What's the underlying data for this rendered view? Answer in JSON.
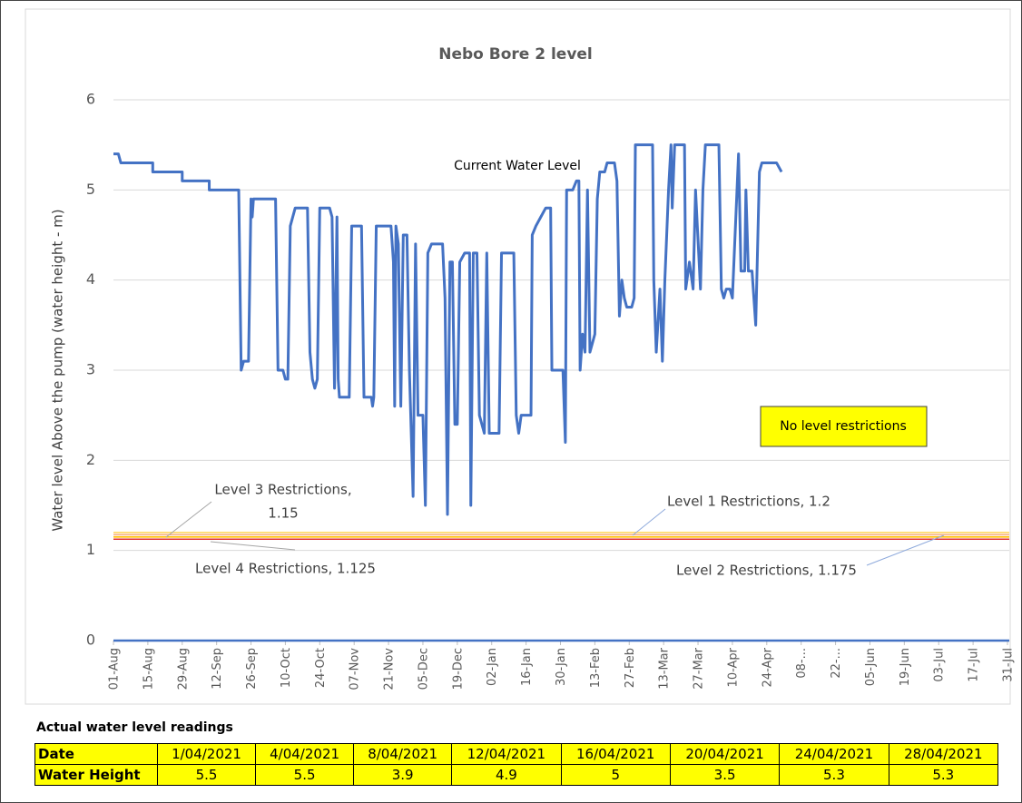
{
  "chart_data": {
    "type": "line",
    "title": "Nebo Bore 2 level",
    "y_label": "Water level Above the pump (water height - m)",
    "xlim": [
      0,
      364
    ],
    "xticks": [
      {
        "value": 0,
        "label": "01-Aug"
      },
      {
        "value": 14,
        "label": "15-Aug"
      },
      {
        "value": 28,
        "label": "29-Aug"
      },
      {
        "value": 42,
        "label": "12-Sep"
      },
      {
        "value": 56,
        "label": "26-Sep"
      },
      {
        "value": 70,
        "label": "10-Oct"
      },
      {
        "value": 84,
        "label": "24-Oct"
      },
      {
        "value": 98,
        "label": "07-Nov"
      },
      {
        "value": 112,
        "label": "21-Nov"
      },
      {
        "value": 126,
        "label": "05-Dec"
      },
      {
        "value": 140,
        "label": "19-Dec"
      },
      {
        "value": 154,
        "label": "02-Jan"
      },
      {
        "value": 168,
        "label": "16-Jan"
      },
      {
        "value": 182,
        "label": "30-Jan"
      },
      {
        "value": 196,
        "label": "13-Feb"
      },
      {
        "value": 210,
        "label": "27-Feb"
      },
      {
        "value": 224,
        "label": "13-Mar"
      },
      {
        "value": 238,
        "label": "27-Mar"
      },
      {
        "value": 252,
        "label": "10-Apr"
      },
      {
        "value": 266,
        "label": "24-Apr"
      },
      {
        "value": 280,
        "label": "08-..."
      },
      {
        "value": 294,
        "label": "22-..."
      },
      {
        "value": 308,
        "label": "05-Jun"
      },
      {
        "value": 322,
        "label": "19-Jun"
      },
      {
        "value": 336,
        "label": "03-Jul"
      },
      {
        "value": 350,
        "label": "17-Jul"
      },
      {
        "value": 364,
        "label": "31-Jul"
      }
    ],
    "ylim": [
      0,
      6
    ],
    "yticks": [
      0,
      1,
      2,
      3,
      4,
      5,
      6
    ],
    "grid": true,
    "series": [
      {
        "name": "Current Water Level",
        "color": "#4472c4",
        "x": [
          0,
          2,
          3,
          16,
          16,
          28,
          28,
          39,
          39,
          51,
          52,
          53,
          55,
          56,
          56.5,
          57,
          66,
          67,
          69,
          70,
          71,
          72,
          74,
          79,
          80,
          81,
          82,
          83,
          84,
          88,
          89,
          90,
          91,
          91.5,
          92,
          96,
          97,
          101,
          102,
          105,
          105.5,
          106,
          107,
          113,
          114,
          114.5,
          115,
          116,
          117,
          118,
          119.5,
          120.5,
          122,
          123,
          124,
          126,
          127,
          128,
          129.5,
          134,
          135,
          136,
          137,
          138,
          139,
          140,
          141,
          143,
          145,
          145.5,
          146.5,
          148,
          149,
          150,
          151,
          152,
          153,
          157,
          158,
          163,
          164,
          165,
          166,
          170,
          170.5,
          172,
          174,
          176,
          178,
          178.5,
          182,
          183,
          184,
          184.5,
          187,
          188.5,
          189.5,
          190,
          191,
          192,
          193,
          194,
          195,
          196,
          197,
          198,
          200,
          201,
          204,
          205,
          206,
          207,
          208,
          209,
          211,
          212,
          212.5,
          219.5,
          220,
          221,
          222.5,
          223.5,
          224.5,
          226,
          227,
          227.5,
          228.5,
          232.5,
          233,
          234.5,
          236,
          237,
          239,
          240,
          241,
          246.5,
          247.5,
          248.5,
          249.5,
          251,
          252,
          254.5,
          255.5,
          257,
          257.5,
          258.5,
          260,
          261.5,
          263,
          264,
          270,
          272
        ],
        "values": [
          5.4,
          5.4,
          5.3,
          5.3,
          5.2,
          5.2,
          5.1,
          5.1,
          5.0,
          5.0,
          3.0,
          3.1,
          3.1,
          4.9,
          4.7,
          4.9,
          4.9,
          3.0,
          3.0,
          2.9,
          2.9,
          4.6,
          4.8,
          4.8,
          3.2,
          2.9,
          2.8,
          2.9,
          4.8,
          4.8,
          4.7,
          2.8,
          4.7,
          2.9,
          2.7,
          2.7,
          4.6,
          4.6,
          2.7,
          2.7,
          2.6,
          2.7,
          4.6,
          4.6,
          4.2,
          2.6,
          4.6,
          4.4,
          2.6,
          4.5,
          4.5,
          3.0,
          1.6,
          4.4,
          2.5,
          2.5,
          1.5,
          4.3,
          4.4,
          4.4,
          3.8,
          1.4,
          4.2,
          4.2,
          2.4,
          2.4,
          4.2,
          4.3,
          4.3,
          1.5,
          4.3,
          4.3,
          2.5,
          2.4,
          2.3,
          4.3,
          2.3,
          2.3,
          4.3,
          4.3,
          2.5,
          2.3,
          2.5,
          2.5,
          4.5,
          4.6,
          4.7,
          4.8,
          4.8,
          3.0,
          3.0,
          3.0,
          2.2,
          5.0,
          5.0,
          5.1,
          5.1,
          3.0,
          3.4,
          3.2,
          5.0,
          3.2,
          3.3,
          3.4,
          4.9,
          5.2,
          5.2,
          5.3,
          5.3,
          5.1,
          3.6,
          4.0,
          3.8,
          3.7,
          3.7,
          3.8,
          5.5,
          5.5,
          4.0,
          3.2,
          3.9,
          3.1,
          4.0,
          5.0,
          5.5,
          4.8,
          5.5,
          5.5,
          3.9,
          4.2,
          3.9,
          5.0,
          3.9,
          5.0,
          5.5,
          5.5,
          3.9,
          3.8,
          3.9,
          3.9,
          3.8,
          5.4,
          4.1,
          4.1,
          5.0,
          4.1,
          4.1,
          3.5,
          5.2,
          5.3,
          5.3,
          5.2
        ]
      }
    ],
    "reference_lines": [
      {
        "label": [
          "Level 1 Restrictions, 1.2"
        ],
        "value": 1.2,
        "color": "#ffd966"
      },
      {
        "label": [
          "Level 2 Restrictions, 1.175"
        ],
        "value": 1.175,
        "color": "#f4b183"
      },
      {
        "label": [
          "Level 3 Restrictions,",
          "1.15"
        ],
        "value": 1.15,
        "color": "#ffc000"
      },
      {
        "label": [
          "Level 4 Restrictions, 1.125"
        ],
        "value": 1.125,
        "color": "#e03030"
      }
    ],
    "annotations": [
      "No level restrictions"
    ]
  },
  "table": {
    "title": "Actual water level readings",
    "header": [
      "Date",
      "1/04/2021",
      "4/04/2021",
      "8/04/2021",
      "12/04/2021",
      "16/04/2021",
      "20/04/2021",
      "24/04/2021",
      "28/04/2021"
    ],
    "rows": [
      [
        "Water Height",
        5.5,
        5.5,
        3.9,
        4.9,
        5,
        3.5,
        5.3,
        5.3
      ]
    ]
  }
}
